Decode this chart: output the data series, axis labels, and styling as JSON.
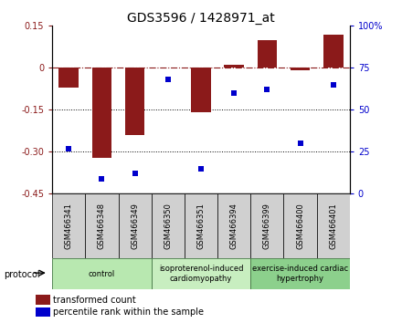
{
  "title": "GDS3596 / 1428971_at",
  "samples": [
    "GSM466341",
    "GSM466348",
    "GSM466349",
    "GSM466350",
    "GSM466351",
    "GSM466394",
    "GSM466399",
    "GSM466400",
    "GSM466401"
  ],
  "bar_values": [
    -0.07,
    -0.32,
    -0.24,
    0.0,
    -0.16,
    0.01,
    0.1,
    -0.01,
    0.12
  ],
  "percentile_values": [
    27,
    9,
    12,
    68,
    15,
    60,
    62,
    30,
    65
  ],
  "bar_color": "#8B1A1A",
  "dot_color": "#0000CC",
  "ylim_left": [
    -0.45,
    0.15
  ],
  "ylim_right": [
    0,
    100
  ],
  "yticks_left": [
    0.15,
    0.0,
    -0.15,
    -0.3,
    -0.45
  ],
  "yticks_right": [
    100,
    75,
    50,
    25,
    0
  ],
  "ytick_labels_left": [
    "0.15",
    "0",
    "-0.15",
    "-0.30",
    "-0.45"
  ],
  "ytick_labels_right": [
    "100%",
    "75",
    "50",
    "25",
    "0"
  ],
  "hlines_dotted": [
    -0.15,
    -0.3
  ],
  "hline_dashed": 0.0,
  "group_labels": [
    "control",
    "isoproterenol-induced\ncardiomyopathy",
    "exercise-induced cardiac\nhypertrophy"
  ],
  "group_ranges": [
    [
      0,
      2
    ],
    [
      3,
      5
    ],
    [
      6,
      8
    ]
  ],
  "group_colors": [
    "#b8e8b0",
    "#c8eec0",
    "#8cd08c"
  ],
  "protocol_label": "protocol",
  "legend_bar_label": "transformed count",
  "legend_dot_label": "percentile rank within the sample",
  "bar_width": 0.6,
  "title_fontsize": 10,
  "tick_fontsize": 7,
  "sample_fontsize": 6,
  "group_fontsize": 6,
  "legend_fontsize": 7
}
